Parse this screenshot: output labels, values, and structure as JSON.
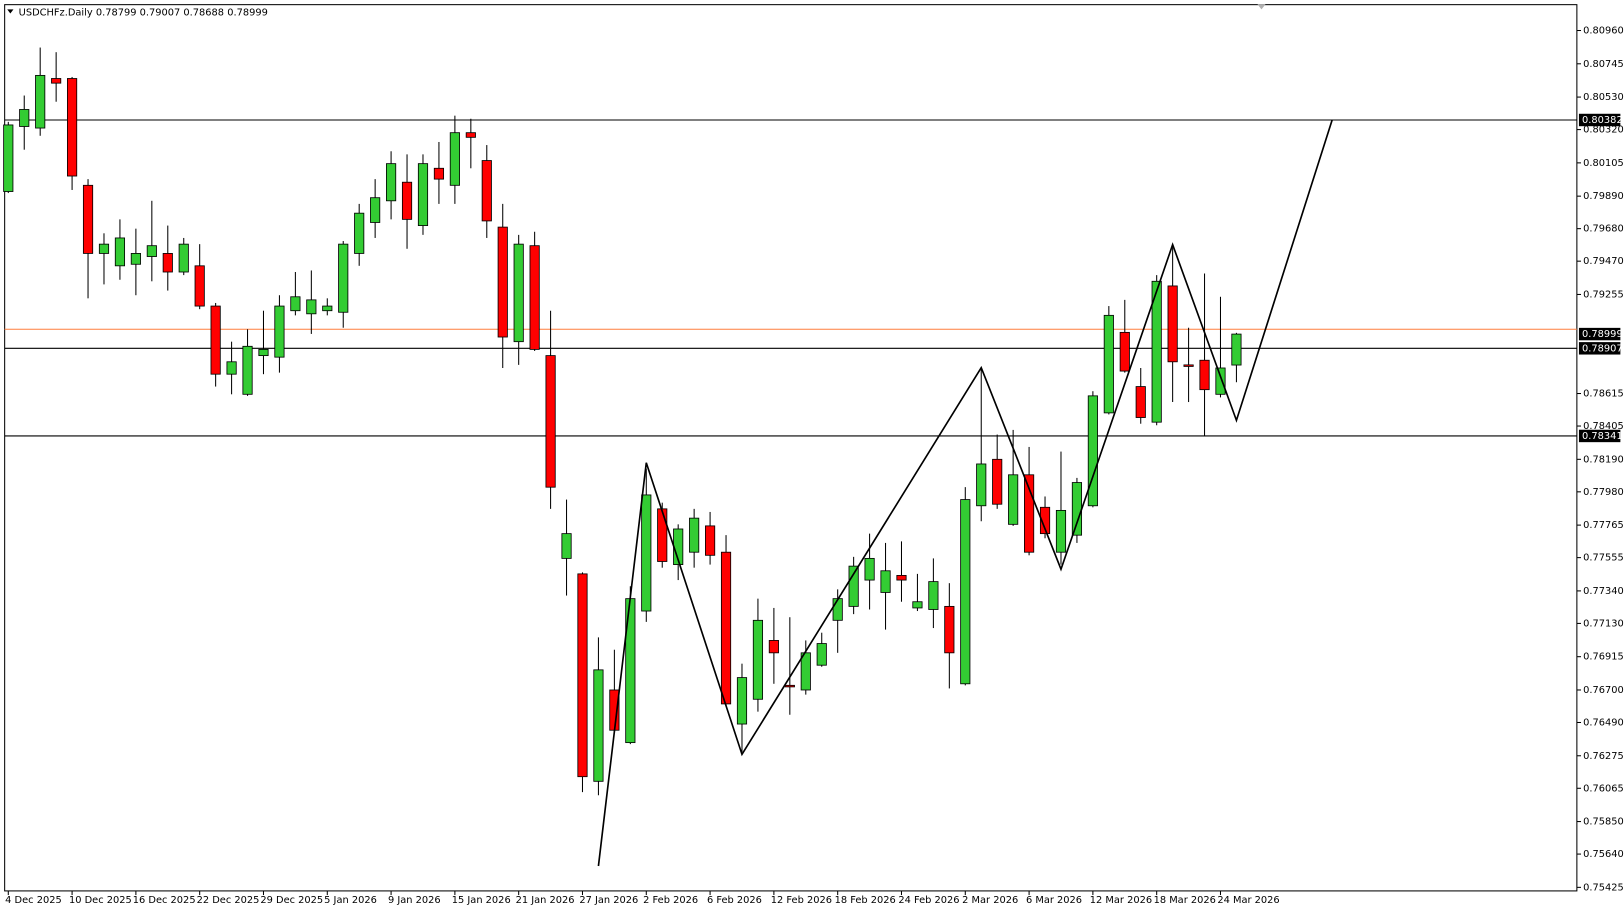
{
  "chart_data": {
    "type": "candlestick",
    "title": "USDCHFz.Daily",
    "categories": [
      "4 Dec 2025",
      null,
      null,
      null,
      "10 Dec 2025",
      null,
      null,
      null,
      "16 Dec 2025",
      null,
      null,
      null,
      "22 Dec 2025",
      null,
      null,
      null,
      "29 Dec 2025",
      null,
      null,
      null,
      "5 Jan 2026",
      null,
      null,
      null,
      "9 Jan 2026",
      null,
      null,
      null,
      "15 Jan 2026",
      null,
      null,
      null,
      "21 Jan 2026",
      null,
      null,
      null,
      "27 Jan 2026",
      null,
      null,
      null,
      "2 Feb 2026",
      null,
      null,
      null,
      "6 Feb 2026",
      null,
      null,
      null,
      "12 Feb 2026",
      null,
      null,
      null,
      "18 Feb 2026",
      null,
      null,
      null,
      "24 Feb 2026",
      null,
      null,
      null,
      "2 Mar 2026",
      null,
      null,
      null,
      "6 Mar 2026",
      null,
      null,
      null,
      "12 Mar 2026",
      null,
      null,
      null,
      "18 Mar 2026",
      null,
      null,
      null,
      "24 Mar 2026",
      null
    ],
    "open": [
      0.7992,
      0.8034,
      0.8033,
      0.8065,
      0.8065,
      0.7996,
      0.7952,
      0.7944,
      0.7945,
      0.795,
      0.7952,
      0.794,
      0.7944,
      0.7918,
      0.7874,
      0.7861,
      0.7886,
      0.7885,
      0.7915,
      0.7913,
      0.7915,
      0.7914,
      0.7952,
      0.7972,
      0.7986,
      0.7998,
      0.797,
      0.8007,
      0.7996,
      0.803,
      0.8012,
      0.7969,
      0.7895,
      0.7957,
      0.7886,
      0.7755,
      0.7745,
      0.7611,
      0.767,
      0.7636,
      0.7721,
      0.7787,
      0.7751,
      0.7759,
      0.7776,
      0.7759,
      0.7648,
      0.7664,
      0.7702,
      0.7673,
      0.767,
      0.7686,
      0.7715,
      0.7724,
      0.7741,
      0.7733,
      0.7744,
      0.7723,
      0.7722,
      0.7724,
      0.7674,
      0.7789,
      0.7819,
      0.7777,
      0.7809,
      0.7788,
      0.7759,
      0.777,
      0.7789,
      0.7849,
      0.7901,
      0.7866,
      0.7843,
      0.7931,
      0.788,
      0.7883,
      0.7861,
      0.78799
    ],
    "high": [
      0.8037,
      0.8054,
      0.8085,
      0.8082,
      0.8066,
      0.8,
      0.7965,
      0.7974,
      0.7968,
      0.7986,
      0.797,
      0.7962,
      0.7958,
      0.792,
      0.7895,
      0.7903,
      0.7915,
      0.7925,
      0.794,
      0.7941,
      0.7923,
      0.796,
      0.7984,
      0.8,
      0.8018,
      0.8016,
      0.8016,
      0.8024,
      0.8041,
      0.8039,
      0.8022,
      0.7984,
      0.7964,
      0.7966,
      0.7915,
      0.7793,
      0.7746,
      0.7704,
      0.7696,
      0.7737,
      0.7813,
      0.7791,
      0.7777,
      0.7787,
      0.7785,
      0.777,
      0.7687,
      0.7729,
      0.7723,
      0.7717,
      0.7702,
      0.7707,
      0.7735,
      0.7756,
      0.7771,
      0.7765,
      0.7766,
      0.7745,
      0.7755,
      0.7739,
      0.7801,
      0.7878,
      0.7835,
      0.7838,
      0.7827,
      0.7795,
      0.7824,
      0.7807,
      0.7863,
      0.7918,
      0.7922,
      0.7878,
      0.7938,
      0.7956,
      0.7904,
      0.7939,
      0.7924,
      0.79007
    ],
    "low": [
      0.7991,
      0.8019,
      0.8028,
      0.805,
      0.7993,
      0.7923,
      0.7932,
      0.7935,
      0.7925,
      0.7934,
      0.7928,
      0.7938,
      0.7916,
      0.7866,
      0.7861,
      0.786,
      0.7874,
      0.7875,
      0.7912,
      0.79,
      0.7912,
      0.7904,
      0.7944,
      0.7962,
      0.7974,
      0.7955,
      0.7964,
      0.7984,
      0.7984,
      0.8007,
      0.7962,
      0.7878,
      0.788,
      0.7889,
      0.7787,
      0.7731,
      0.7604,
      0.7602,
      0.7642,
      0.7635,
      0.7714,
      0.7749,
      0.7741,
      0.7749,
      0.7751,
      0.766,
      0.763,
      0.7656,
      0.7674,
      0.7654,
      0.7667,
      0.7685,
      0.7694,
      0.7719,
      0.7722,
      0.7709,
      0.7727,
      0.7721,
      0.771,
      0.7671,
      0.7673,
      0.7779,
      0.7787,
      0.7776,
      0.7757,
      0.7768,
      0.7751,
      0.7765,
      0.7788,
      0.7848,
      0.7875,
      0.7842,
      0.7841,
      0.7856,
      0.7856,
      0.7834,
      0.7859,
      0.78688
    ],
    "close": [
      0.8035,
      0.8045,
      0.8067,
      0.8062,
      0.8002,
      0.7952,
      0.7958,
      0.7962,
      0.7952,
      0.7957,
      0.794,
      0.7958,
      0.7918,
      0.7874,
      0.7882,
      0.7892,
      0.789,
      0.7918,
      0.7924,
      0.7922,
      0.7918,
      0.7958,
      0.7978,
      0.7988,
      0.801,
      0.7974,
      0.801,
      0.8,
      0.803,
      0.8027,
      0.7973,
      0.7898,
      0.7958,
      0.789,
      0.7801,
      0.7771,
      0.7614,
      0.7683,
      0.7644,
      0.7729,
      0.7796,
      0.7753,
      0.7774,
      0.7781,
      0.7757,
      0.7661,
      0.7678,
      0.7715,
      0.7694,
      0.7672,
      0.7694,
      0.77,
      0.7729,
      0.775,
      0.7755,
      0.7747,
      0.7741,
      0.7727,
      0.774,
      0.7694,
      0.7793,
      0.7816,
      0.779,
      0.7809,
      0.7759,
      0.7771,
      0.7786,
      0.7804,
      0.786,
      0.7912,
      0.7876,
      0.7846,
      0.7934,
      0.7882,
      0.7879,
      0.7864,
      0.7878,
      0.78999
    ],
    "up_color": "#33cc33",
    "down_color": "#ff0000",
    "ylim": [
      0.75402,
      0.81127
    ],
    "yticks": [
      {
        "value": 0.8096,
        "label": "0.80960"
      },
      0.80745,
      {
        "value": 0.8053,
        "label": "0.80530"
      },
      {
        "value": 0.8032,
        "label": "0.80320"
      },
      0.80105,
      {
        "value": 0.7989,
        "label": "0.79890"
      },
      {
        "value": 0.7968,
        "label": "0.79680"
      },
      {
        "value": 0.7947,
        "label": "0.79470"
      },
      0.79255,
      0.78615,
      0.78405,
      {
        "value": 0.7819,
        "label": "0.78190"
      },
      {
        "value": 0.7798,
        "label": "0.77980"
      },
      0.77765,
      0.77555,
      {
        "value": 0.7734,
        "label": "0.77340"
      },
      {
        "value": 0.7713,
        "label": "0.77130"
      },
      0.76915,
      {
        "value": 0.767,
        "label": "0.76700"
      },
      {
        "value": 0.7649,
        "label": "0.76490"
      },
      0.76275,
      0.76065,
      {
        "value": 0.7585,
        "label": "0.75850"
      },
      {
        "value": 0.7564,
        "label": "0.75640"
      },
      0.75425
    ],
    "levels": [
      {
        "value": 0.80382,
        "color": "#000000"
      },
      {
        "value": 0.78907,
        "color": "#000000"
      },
      {
        "value": 0.78341,
        "color": "#000000"
      }
    ],
    "price_line": {
      "value": 0.7903,
      "color": "#ff7f3f"
    },
    "zigzag": {
      "color": "#000000",
      "x": [
        37,
        40,
        46,
        61,
        66,
        73,
        77,
        83
      ],
      "y": [
        0.75563,
        0.78168,
        0.76284,
        0.78782,
        0.7748,
        0.79577,
        0.78442,
        0.80382
      ]
    }
  }
}
